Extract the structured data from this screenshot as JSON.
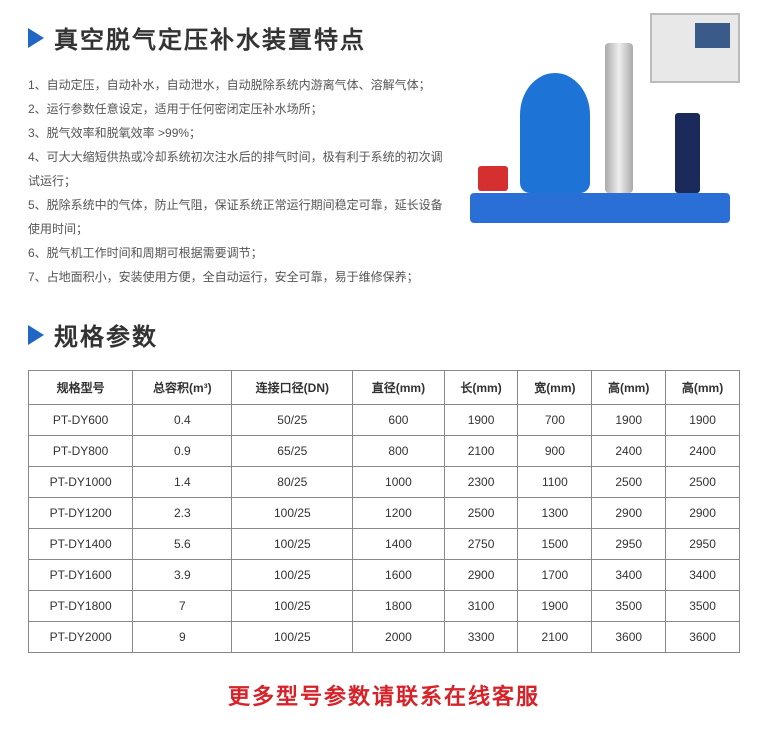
{
  "features": {
    "title": "真空脱气定压补水装置特点",
    "items": [
      "1、自动定压，自动补水，自动泄水，自动脱除系统内游离气体、溶解气体；",
      "2、运行参数任意设定，适用于任何密闭定压补水场所；",
      "3、脱气效率和脱氧效率 >99%；",
      "4、可大大缩短供热或冷却系统初次注水后的排气时间，极有利于系统的初次调试运行；",
      "5、脱除系统中的气体，防止气阻，保证系统正常运行期间稳定可靠，延长设备使用时间；",
      "6、脱气机工作时间和周期可根据需要调节；",
      "7、占地面积小，安装使用方便，全自动运行，安全可靠，易于维修保养；"
    ]
  },
  "specs": {
    "title": "规格参数",
    "columns": [
      "规格型号",
      "总容积(m³)",
      "连接口径(DN)",
      "直径(mm)",
      "长(mm)",
      "宽(mm)",
      "高(mm)",
      "高(mm)"
    ],
    "rows": [
      [
        "PT-DY600",
        "0.4",
        "50/25",
        "600",
        "1900",
        "700",
        "1900",
        "1900"
      ],
      [
        "PT-DY800",
        "0.9",
        "65/25",
        "800",
        "2100",
        "900",
        "2400",
        "2400"
      ],
      [
        "PT-DY1000",
        "1.4",
        "80/25",
        "1000",
        "2300",
        "1100",
        "2500",
        "2500"
      ],
      [
        "PT-DY1200",
        "2.3",
        "100/25",
        "1200",
        "2500",
        "1300",
        "2900",
        "2900"
      ],
      [
        "PT-DY1400",
        "5.6",
        "100/25",
        "1400",
        "2750",
        "1500",
        "2950",
        "2950"
      ],
      [
        "PT-DY1600",
        "3.9",
        "100/25",
        "1600",
        "2900",
        "1700",
        "3400",
        "3400"
      ],
      [
        "PT-DY1800",
        "7",
        "100/25",
        "1800",
        "3100",
        "1900",
        "3500",
        "3500"
      ],
      [
        "PT-DY2000",
        "9",
        "100/25",
        "2000",
        "3300",
        "2100",
        "3600",
        "3600"
      ]
    ]
  },
  "footer": "更多型号参数请联系在线客服",
  "colors": {
    "accent_blue": "#2066c4",
    "accent_red": "#d6232a",
    "table_border": "#888888",
    "text_body": "#555555"
  }
}
